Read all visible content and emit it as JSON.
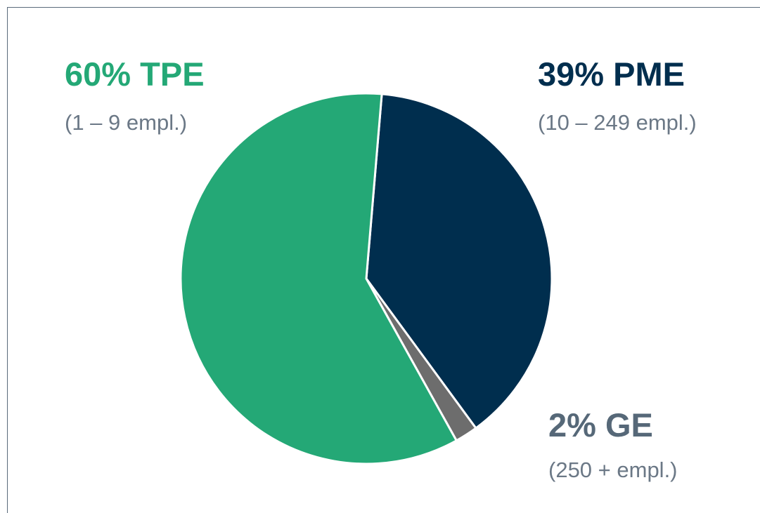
{
  "chart_data": {
    "type": "pie",
    "categories": [
      "PME",
      "GE",
      "TPE"
    ],
    "values": [
      39,
      2,
      60
    ],
    "value_labels": [
      "39%",
      "2%",
      "60%"
    ],
    "descriptions": [
      "(10 – 249 empl.)",
      "(250 + empl.)",
      "(1 – 9 empl.)"
    ],
    "colors": [
      "#002e4e",
      "#6d6d6d",
      "#24a876"
    ],
    "label_colors": [
      "#002e4e",
      "#566878",
      "#24a876"
    ]
  }
}
